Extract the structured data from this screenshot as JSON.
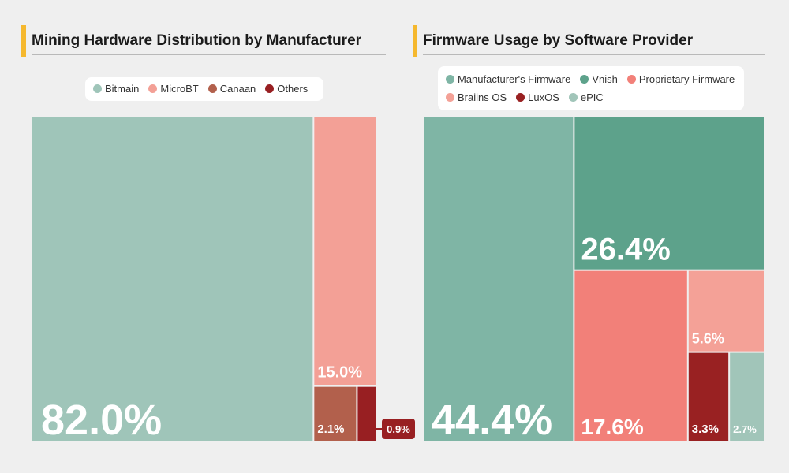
{
  "colors": {
    "bitmain": "#9fc5b9",
    "microbt": "#f3a096",
    "canaan": "#b2604c",
    "others": "#981f22",
    "manufacturer_firmware": "#7fb5a5",
    "vnish": "#5da28b",
    "proprietary": "#f28079",
    "braiins": "#f4a197",
    "luxos": "#992122",
    "epic": "#a1c5b9",
    "accent": "#f5b82e"
  },
  "chart_data": [
    {
      "type": "treemap",
      "title": "Mining Hardware Distribution by Manufacturer",
      "legend_position": "top",
      "series": [
        {
          "name": "Bitmain",
          "value": 82.0,
          "label": "82.0%",
          "color": "#9fc5b9"
        },
        {
          "name": "MicroBT",
          "value": 15.0,
          "label": "15.0%",
          "color": "#f3a096"
        },
        {
          "name": "Canaan",
          "value": 2.1,
          "label": "2.1%",
          "color": "#b2604c"
        },
        {
          "name": "Others",
          "value": 0.9,
          "label": "0.9%",
          "color": "#981f22"
        }
      ]
    },
    {
      "type": "treemap",
      "title": "Firmware Usage by Software Provider",
      "legend_position": "top",
      "series": [
        {
          "name": "Manufacturer's Firmware",
          "value": 44.4,
          "label": "44.4%",
          "color": "#7fb5a5"
        },
        {
          "name": "Vnish",
          "value": 26.4,
          "label": "26.4%",
          "color": "#5da28b"
        },
        {
          "name": "Proprietary Firmware",
          "value": 17.6,
          "label": "17.6%",
          "color": "#f28079"
        },
        {
          "name": "Braiins OS",
          "value": 5.6,
          "label": "5.6%",
          "color": "#f4a197"
        },
        {
          "name": "LuxOS",
          "value": 3.3,
          "label": "3.3%",
          "color": "#992122"
        },
        {
          "name": "ePIC",
          "value": 2.7,
          "label": "2.7%",
          "color": "#a1c5b9"
        }
      ]
    }
  ]
}
